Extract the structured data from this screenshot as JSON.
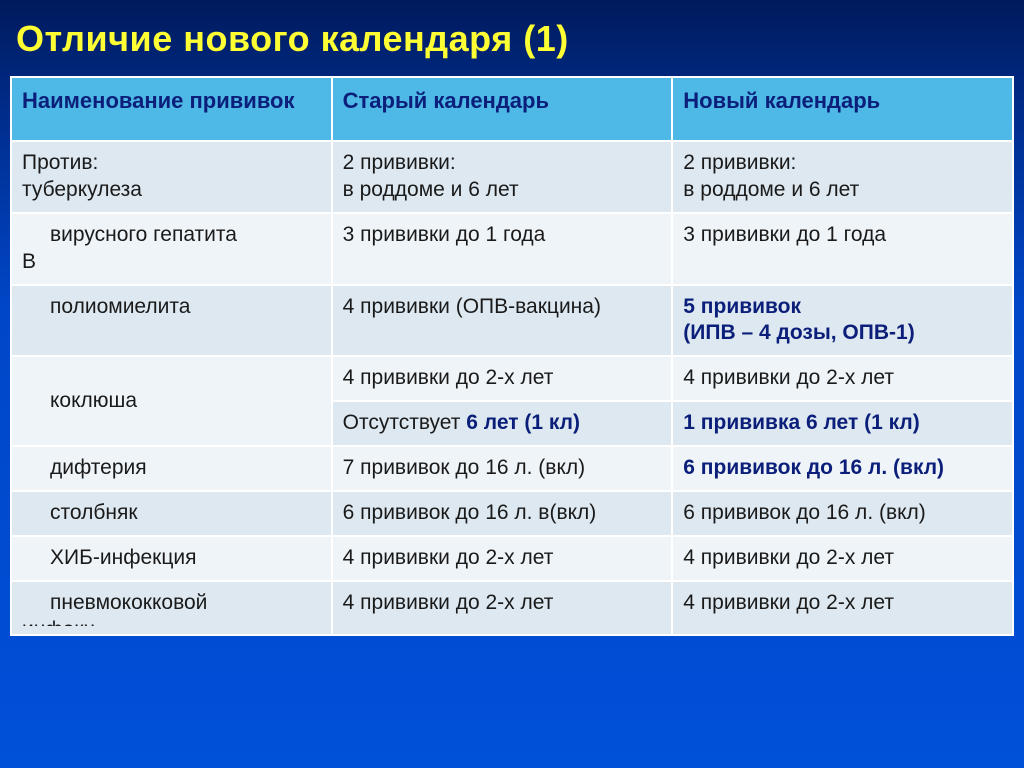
{
  "title": "Отличие нового календаря (1)",
  "colors": {
    "title": "#ffff33",
    "header_bg": "#4eb8e6",
    "header_text": "#0b1f7a",
    "row_a": "#dde8f0",
    "row_b": "#eef4f8",
    "emphasis": "#0b1f7a",
    "body_text": "#1a1a1a",
    "bg_gradient_top": "#001a5c",
    "bg_gradient_bottom": "#0050d8",
    "border": "#ffffff"
  },
  "typography": {
    "title_fontsize": 36,
    "header_fontsize": 22,
    "cell_fontsize": 21,
    "font_family": "Verdana"
  },
  "table": {
    "column_widths_pct": [
      32,
      34,
      34
    ],
    "headers": [
      "Наименование прививок",
      "Старый календарь",
      "Новый календарь"
    ],
    "rows": [
      {
        "band": "a",
        "c1_prefix": "Против:",
        "c1": "туберкулеза",
        "c2": "2 прививки:\nв роддоме и 6 лет",
        "c3": "2 прививки:\nв роддоме и 6 лет"
      },
      {
        "band": "b",
        "c1_indent": "вирусного гепатита",
        "c1_tail": "В",
        "c2": "3 прививки до 1 года",
        "c3": "3 прививки до 1 года"
      },
      {
        "band": "a",
        "c1_indent": "полиомиелита",
        "c2": "4 прививки (ОПВ-вакцина)",
        "c3_bold": "5 прививок\n(ИПВ – 4 дозы, ОПВ-1)"
      },
      {
        "band": "b",
        "c1_rowspan2_indent": "коклюша",
        "c2": "4 прививки до 2-х лет",
        "c3": "4 прививки до 2-х лет"
      },
      {
        "band": "a",
        "c2_mixed_pre": "Отсутствует ",
        "c2_mixed_hl": "6 лет (1 кл)",
        "c3_bold": "1 прививка 6 лет (1 кл)"
      },
      {
        "band": "b",
        "c1_indent": "дифтерия",
        "c2": "7 прививок до 16 л. (вкл)",
        "c3_bold": "6 прививок до 16 л. (вкл)"
      },
      {
        "band": "a",
        "c1_indent": "столбняк",
        "c2": "6 прививок до 16 л. в(вкл)",
        "c3": "6 прививок до 16 л. (вкл)"
      },
      {
        "band": "b",
        "c1_indent": "ХИБ-инфекция",
        "c2": "4 прививки до 2-х лет",
        "c3": "4 прививки до 2-х лет"
      },
      {
        "band": "a",
        "c1_indent": "пневмококковой",
        "c1_tail": "инфекц.",
        "c2": "4 прививки до 2-х лет",
        "c3": "4 прививки до 2-х лет",
        "cutoff": true
      }
    ]
  }
}
